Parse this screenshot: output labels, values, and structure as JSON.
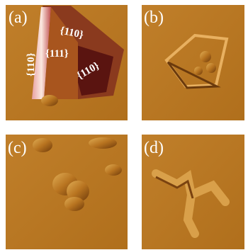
{
  "panels": [
    {
      "label": "(a)",
      "annotations": [
        "{110}",
        "{111}",
        "{110}",
        "{110}"
      ]
    },
    {
      "label": "(b)"
    },
    {
      "label": "(c)"
    },
    {
      "label": "(d)"
    }
  ]
}
